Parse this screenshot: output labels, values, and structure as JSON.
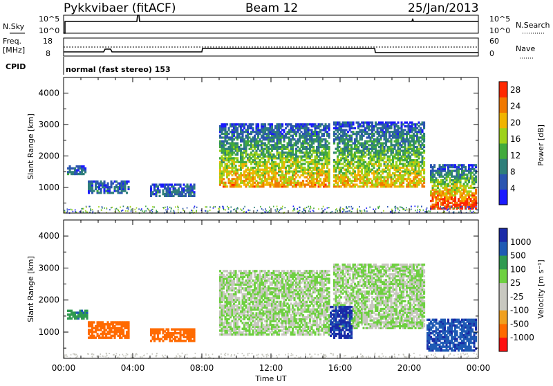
{
  "header": {
    "station": "Pykkvibaer (fitACF)",
    "beam": "Beam 12",
    "date": "25/Jan/2013"
  },
  "aux": {
    "nsky_label": "N.Sky",
    "nsky_ticks": [
      "10^5",
      "10^0"
    ],
    "nsearch_label": "N.Search",
    "nsearch_ticks": [
      "10^5",
      "10^0"
    ],
    "freq_label": "Freq.",
    "freq_unit": "[MHz]",
    "freq_ticks": [
      "18",
      "8"
    ],
    "nave_label": "Nave",
    "nave_ticks": [
      "60",
      "0"
    ],
    "cpid_label": "CPID",
    "cpid_text": "normal (fast stereo) 153"
  },
  "colors": {
    "power": [
      "#1a1aff",
      "#2b55b0",
      "#2f7f7a",
      "#41aa3c",
      "#9ed21a",
      "#f0b400",
      "#f07800",
      "#ff2800"
    ],
    "velocity": [
      "#ff1010",
      "#ff6a00",
      "#f0a020",
      "#c8c8c0",
      "#c8c8c0",
      "#6ed040",
      "#2f9a50",
      "#1e5ab4",
      "#1a2aa8"
    ]
  },
  "chart_data": [
    {
      "type": "heatmap",
      "name": "power",
      "x": [
        "00:00",
        "04:00",
        "08:00",
        "12:00",
        "16:00",
        "20:00",
        "00:00"
      ],
      "xlim": [
        0,
        24
      ],
      "ylabel": "Slant Range [km]",
      "yticks": [
        "1000",
        "2000",
        "3000",
        "4000"
      ],
      "ylim": [
        180,
        4500
      ],
      "colorbar": {
        "label": "Power [dB]",
        "ticks": [
          "4",
          "8",
          "12",
          "16",
          "20",
          "24",
          "28"
        ],
        "range": [
          0,
          30
        ]
      },
      "regions": [
        {
          "t0": 0.2,
          "t1": 1.4,
          "r0": 1400,
          "r1": 1700,
          "level": 0.1
        },
        {
          "t0": 1.4,
          "t1": 3.8,
          "r0": 800,
          "r1": 1200,
          "level": 0.1
        },
        {
          "t0": 5.0,
          "t1": 7.6,
          "r0": 700,
          "r1": 1100,
          "level": 0.1
        },
        {
          "t0": 9.0,
          "t1": 15.4,
          "r0": 1000,
          "r1": 3000,
          "level": 0.6
        },
        {
          "t0": 15.6,
          "t1": 20.8,
          "r0": 1000,
          "r1": 3100,
          "level": 0.55
        },
        {
          "t0": 21.2,
          "t1": 23.8,
          "r0": 300,
          "r1": 1700,
          "level": 0.85
        }
      ]
    },
    {
      "type": "heatmap",
      "name": "velocity",
      "x": [
        "00:00",
        "04:00",
        "08:00",
        "12:00",
        "16:00",
        "20:00",
        "00:00"
      ],
      "xlim": [
        0,
        24
      ],
      "xlabel": "Time UT",
      "ylabel": "Slant Range [km]",
      "yticks": [
        "1000",
        "2000",
        "3000",
        "4000"
      ],
      "ylim": [
        180,
        4500
      ],
      "colorbar": {
        "label": "Velocity [m s⁻¹]",
        "ticks": [
          "1000",
          "500",
          "100",
          "25",
          "-25",
          "-100",
          "-500",
          "-1000"
        ]
      },
      "regions": [
        {
          "t0": 0.2,
          "t1": 1.4,
          "r0": 1400,
          "r1": 1700,
          "value": 80
        },
        {
          "t0": 1.4,
          "t1": 3.8,
          "r0": 800,
          "r1": 1300,
          "value": -300
        },
        {
          "t0": 5.0,
          "t1": 7.6,
          "r0": 700,
          "r1": 1100,
          "value": -250
        },
        {
          "t0": 9.0,
          "t1": 15.4,
          "r0": 900,
          "r1": 2900,
          "value": 0
        },
        {
          "t0": 15.6,
          "t1": 20.8,
          "r0": 1100,
          "r1": 3100,
          "value": 0
        },
        {
          "t0": 15.4,
          "t1": 16.6,
          "r0": 800,
          "r1": 1800,
          "value": 600
        },
        {
          "t0": 21.0,
          "t1": 23.8,
          "r0": 400,
          "r1": 1400,
          "value": 400
        }
      ]
    }
  ]
}
